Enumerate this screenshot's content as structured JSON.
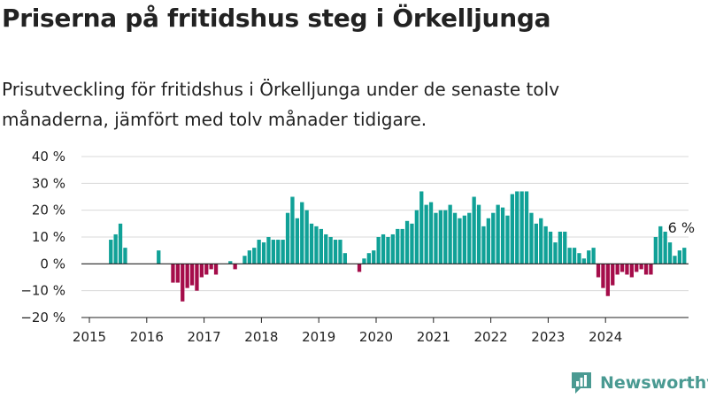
{
  "title": "Priserna på fritidshus steg i Örkelljunga",
  "subtitle": "Prisutveckling för fritidshus i Örkelljunga under de senaste tolv månaderna, jämfört med tolv månader tidigare.",
  "brand": "Newsworthy",
  "colors": {
    "positive": "#10a197",
    "negative": "#a50d4a",
    "axis": "#222222",
    "grid": "#d9d9d9"
  },
  "chart_data": {
    "type": "bar",
    "x_tick_labels": [
      "2015",
      "2016",
      "2017",
      "2018",
      "2019",
      "2020",
      "2021",
      "2022",
      "2023",
      "2024"
    ],
    "y_tick_labels": [
      "−20 %",
      "−10 %",
      "0 %",
      "10 %",
      "20 %",
      "30 %",
      "40 %"
    ],
    "ylim": [
      -20,
      40
    ],
    "grid": true,
    "start": "2015-01",
    "last_label": "6 %",
    "values": [
      null,
      null,
      null,
      null,
      9,
      11,
      15,
      6,
      null,
      null,
      null,
      null,
      null,
      null,
      5,
      null,
      null,
      -7,
      -7,
      -14,
      -9,
      -8,
      -10,
      -5,
      -4,
      -2,
      -4,
      null,
      null,
      1,
      -2,
      null,
      3,
      5,
      6,
      9,
      8,
      10,
      9,
      9,
      9,
      19,
      25,
      17,
      23,
      20,
      15,
      14,
      13,
      11,
      10,
      9,
      9,
      4,
      null,
      null,
      -3,
      2,
      4,
      5,
      10,
      11,
      10,
      11,
      13,
      13,
      16,
      15,
      20,
      27,
      22,
      23,
      19,
      20,
      20,
      22,
      19,
      17,
      18,
      19,
      25,
      22,
      14,
      17,
      19,
      22,
      21,
      18,
      26,
      27,
      27,
      27,
      19,
      15,
      17,
      14,
      12,
      8,
      12,
      12,
      6,
      6,
      4,
      2,
      5,
      6,
      -5,
      -9,
      -12,
      -8,
      -4,
      -3,
      -4,
      -5,
      -3,
      -2,
      -4,
      -4,
      10,
      14,
      12,
      8,
      3,
      5,
      6
    ]
  }
}
